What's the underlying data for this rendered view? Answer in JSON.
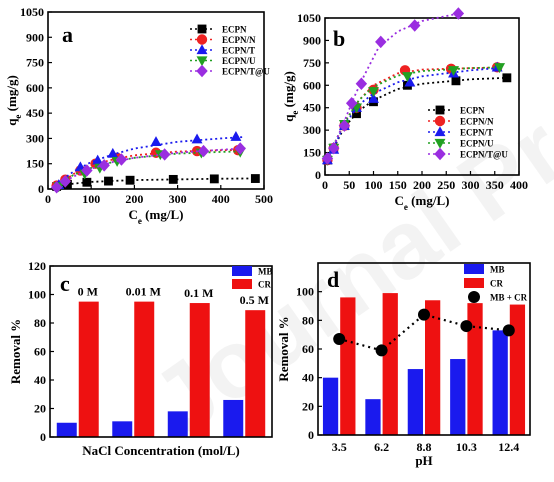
{
  "chart_data": [
    {
      "panel": "a",
      "type": "scatter",
      "xlabel_main": "C",
      "xlabel_sub": "e",
      "xlabel_unit": " (mg/L)",
      "ylabel_main": "q",
      "ylabel_sub": "e",
      "ylabel_unit": " (mg/g)",
      "xlim": [
        0,
        500
      ],
      "ylim": [
        0,
        1050
      ],
      "xticks": [
        0,
        100,
        200,
        300,
        400,
        500
      ],
      "yticks": [
        0,
        150,
        300,
        450,
        600,
        750,
        900,
        1050
      ],
      "legend_position": "top-right",
      "series": [
        {
          "name": "ECPN",
          "color": "#000000",
          "marker": "square",
          "points": [
            [
              20,
              15
            ],
            [
              45,
              28
            ],
            [
              90,
              40
            ],
            [
              140,
              47
            ],
            [
              190,
              52
            ],
            [
              290,
              57
            ],
            [
              385,
              60
            ],
            [
              480,
              62
            ]
          ],
          "fit": [
            [
              20,
              18
            ],
            [
              60,
              32
            ],
            [
              100,
              42
            ],
            [
              150,
              48
            ],
            [
              200,
              53
            ],
            [
              300,
              57
            ],
            [
              400,
              61
            ],
            [
              490,
              63
            ]
          ]
        },
        {
          "name": "ECPN/N",
          "color": "#ee2222",
          "marker": "circle",
          "points": [
            [
              20,
              20
            ],
            [
              40,
              55
            ],
            [
              75,
              110
            ],
            [
              110,
              150
            ],
            [
              160,
              185
            ],
            [
              250,
              215
            ],
            [
              345,
              225
            ],
            [
              440,
              230
            ]
          ],
          "fit": [
            [
              20,
              22
            ],
            [
              60,
              90
            ],
            [
              100,
              140
            ],
            [
              150,
              175
            ],
            [
              200,
              200
            ],
            [
              300,
              222
            ],
            [
              400,
              230
            ],
            [
              450,
              232
            ]
          ]
        },
        {
          "name": "ECPN/T",
          "color": "#1a1aee",
          "marker": "triangle-up",
          "points": [
            [
              25,
              25
            ],
            [
              75,
              130
            ],
            [
              115,
              170
            ],
            [
              150,
              210
            ],
            [
              250,
              280
            ],
            [
              345,
              295
            ],
            [
              435,
              310
            ]
          ],
          "fit": [
            [
              25,
              40
            ],
            [
              60,
              105
            ],
            [
              100,
              160
            ],
            [
              150,
              205
            ],
            [
              200,
              240
            ],
            [
              300,
              280
            ],
            [
              400,
              300
            ],
            [
              450,
              308
            ]
          ]
        },
        {
          "name": "ECPN/U",
          "color": "#22a022",
          "marker": "triangle-down",
          "points": [
            [
              25,
              15
            ],
            [
              85,
              90
            ],
            [
              120,
              125
            ],
            [
              160,
              165
            ],
            [
              260,
              205
            ],
            [
              355,
              215
            ],
            [
              445,
              220
            ]
          ],
          "fit": [
            [
              25,
              30
            ],
            [
              60,
              85
            ],
            [
              100,
              125
            ],
            [
              150,
              160
            ],
            [
              200,
              185
            ],
            [
              300,
              210
            ],
            [
              400,
              220
            ],
            [
              450,
              223
            ]
          ]
        },
        {
          "name": "ECPN/T@U",
          "color": "#9a2ee0",
          "marker": "diamond",
          "points": [
            [
              20,
              10
            ],
            [
              40,
              45
            ],
            [
              90,
              110
            ],
            [
              130,
              140
            ],
            [
              170,
              175
            ],
            [
              270,
              205
            ],
            [
              360,
              225
            ],
            [
              445,
              240
            ]
          ],
          "fit": [
            [
              20,
              20
            ],
            [
              60,
              75
            ],
            [
              100,
              120
            ],
            [
              150,
              160
            ],
            [
              200,
              185
            ],
            [
              300,
              215
            ],
            [
              400,
              233
            ],
            [
              450,
              240
            ]
          ]
        }
      ]
    },
    {
      "panel": "b",
      "type": "scatter",
      "xlabel_main": "C",
      "xlabel_sub": "e",
      "xlabel_unit": " (mg/L)",
      "ylabel_main": "q",
      "ylabel_sub": "e",
      "ylabel_unit": " (mg/g)",
      "xlim": [
        0,
        400
      ],
      "ylim": [
        0,
        1050
      ],
      "xticks": [
        0,
        50,
        100,
        150,
        200,
        250,
        300,
        350,
        400
      ],
      "yticks": [
        0,
        150,
        300,
        450,
        600,
        750,
        900,
        1050
      ],
      "legend_position": "bottom-right",
      "series": [
        {
          "name": "ECPN",
          "color": "#000000",
          "marker": "square",
          "points": [
            [
              5,
              100
            ],
            [
              18,
              180
            ],
            [
              40,
              330
            ],
            [
              65,
              410
            ],
            [
              100,
              490
            ],
            [
              170,
              600
            ],
            [
              270,
              630
            ],
            [
              375,
              650
            ]
          ],
          "fit": [
            [
              5,
              90
            ],
            [
              20,
              195
            ],
            [
              40,
              320
            ],
            [
              70,
              430
            ],
            [
              100,
              500
            ],
            [
              150,
              575
            ],
            [
              200,
              610
            ],
            [
              300,
              640
            ],
            [
              375,
              650
            ]
          ]
        },
        {
          "name": "ECPN/N",
          "color": "#ee2222",
          "marker": "circle",
          "points": [
            [
              5,
              100
            ],
            [
              18,
              180
            ],
            [
              40,
              330
            ],
            [
              65,
              450
            ],
            [
              100,
              570
            ],
            [
              165,
              700
            ],
            [
              260,
              710
            ],
            [
              355,
              720
            ]
          ],
          "fit": [
            [
              5,
              100
            ],
            [
              20,
              210
            ],
            [
              40,
              350
            ],
            [
              70,
              500
            ],
            [
              100,
              600
            ],
            [
              150,
              680
            ],
            [
              200,
              705
            ],
            [
              300,
              715
            ],
            [
              355,
              718
            ]
          ]
        },
        {
          "name": "ECPN/T",
          "color": "#1a1aee",
          "marker": "triangle-up",
          "points": [
            [
              5,
              100
            ],
            [
              18,
              170
            ],
            [
              40,
              330
            ],
            [
              65,
              450
            ],
            [
              100,
              510
            ],
            [
              175,
              620
            ],
            [
              265,
              680
            ],
            [
              355,
              720
            ]
          ],
          "fit": [
            [
              5,
              90
            ],
            [
              20,
              200
            ],
            [
              40,
              335
            ],
            [
              70,
              470
            ],
            [
              100,
              545
            ],
            [
              150,
              620
            ],
            [
              200,
              660
            ],
            [
              300,
              700
            ],
            [
              355,
              715
            ]
          ]
        },
        {
          "name": "ECPN/U",
          "color": "#22a022",
          "marker": "triangle-down",
          "points": [
            [
              5,
              100
            ],
            [
              18,
              180
            ],
            [
              40,
              340
            ],
            [
              65,
              450
            ],
            [
              100,
              560
            ],
            [
              170,
              660
            ],
            [
              265,
              700
            ],
            [
              360,
              720
            ]
          ],
          "fit": [
            [
              5,
              100
            ],
            [
              20,
              215
            ],
            [
              40,
              350
            ],
            [
              70,
              500
            ],
            [
              100,
              590
            ],
            [
              150,
              665
            ],
            [
              200,
              695
            ],
            [
              300,
              715
            ],
            [
              360,
              720
            ]
          ]
        },
        {
          "name": "ECPN/T@U",
          "color": "#9a2ee0",
          "marker": "diamond",
          "points": [
            [
              5,
              110
            ],
            [
              18,
              180
            ],
            [
              40,
              330
            ],
            [
              55,
              480
            ],
            [
              75,
              610
            ],
            [
              115,
              890
            ],
            [
              185,
              1000
            ],
            [
              275,
              1080
            ]
          ],
          "fit": [
            [
              5,
              100
            ],
            [
              20,
              210
            ],
            [
              40,
              360
            ],
            [
              60,
              520
            ],
            [
              80,
              660
            ],
            [
              110,
              850
            ],
            [
              150,
              960
            ],
            [
              200,
              1030
            ],
            [
              275,
              1080
            ]
          ]
        }
      ]
    },
    {
      "panel": "c",
      "type": "bar",
      "categories": [
        "0 M",
        "0.01 M",
        "0.1 M",
        "0.5 M"
      ],
      "category_labels": [
        "0 M",
        "0.01 M",
        "0.1 M",
        "0.5 M"
      ],
      "xlabel": "NaCl Concentration (mol/L)",
      "ylabel": "Removal %",
      "ylim": [
        0,
        120
      ],
      "yticks": [
        0,
        20,
        40,
        60,
        80,
        100,
        120
      ],
      "legend_position": "top-right",
      "series": [
        {
          "name": "MB",
          "color": "#1a1aee",
          "values": [
            10,
            11,
            18,
            26
          ]
        },
        {
          "name": "CR",
          "color": "#ee1111",
          "values": [
            95,
            95,
            94,
            89
          ]
        }
      ]
    },
    {
      "panel": "d",
      "type": "bar",
      "categories": [
        "3.5",
        "6.2",
        "8.8",
        "10.3",
        "12.4"
      ],
      "xlabel": "pH",
      "ylabel": "Removal %",
      "ylim": [
        0,
        120
      ],
      "yticks": [
        0,
        20,
        40,
        60,
        80,
        100
      ],
      "legend_position": "top-right",
      "series": [
        {
          "name": "MB",
          "color": "#1a1aee",
          "values": [
            40,
            25,
            46,
            53,
            73
          ]
        },
        {
          "name": "CR",
          "color": "#ee1111",
          "values": [
            96,
            99,
            94,
            92,
            91
          ]
        },
        {
          "name": "MB + CR",
          "color": "#000000",
          "marker": "circle",
          "line": "dotted",
          "values": [
            67,
            59,
            84,
            76,
            73
          ]
        }
      ]
    }
  ]
}
